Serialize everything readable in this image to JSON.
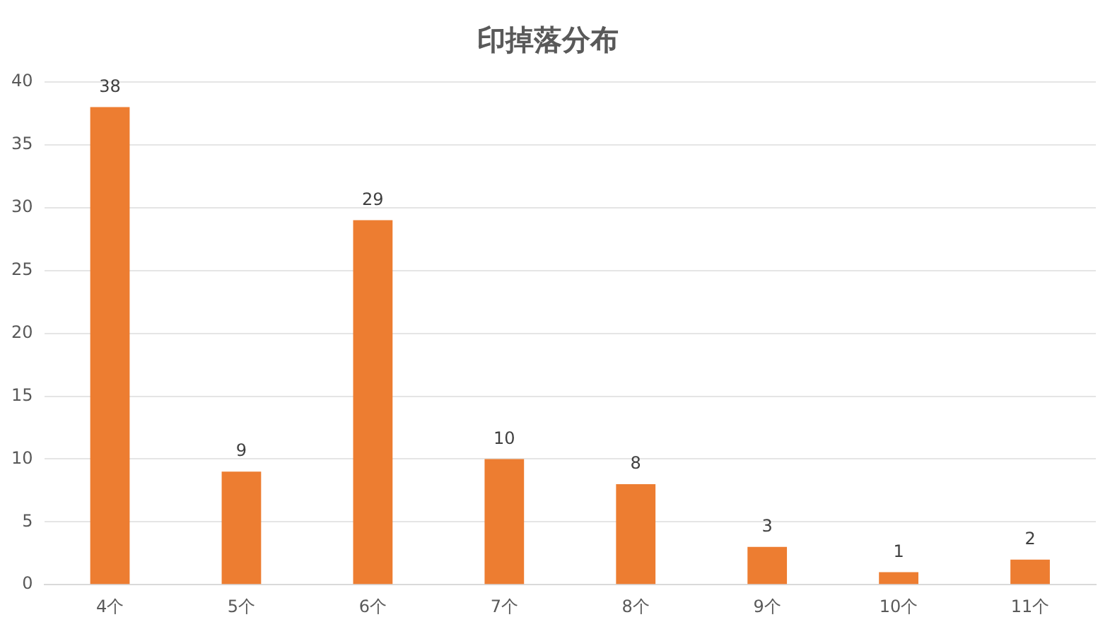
{
  "chart_data": {
    "type": "bar",
    "title": "印掉落分布",
    "categories": [
      "4个",
      "5个",
      "6个",
      "7个",
      "8个",
      "9个",
      "10个",
      "11个"
    ],
    "values": [
      38,
      9,
      29,
      10,
      8,
      3,
      1,
      2
    ],
    "color": "#ed7d31",
    "ylim": [
      0,
      40
    ],
    "yticks": [
      0,
      5,
      10,
      15,
      20,
      25,
      30,
      35,
      40
    ],
    "grid": "y",
    "data_labels": true
  }
}
